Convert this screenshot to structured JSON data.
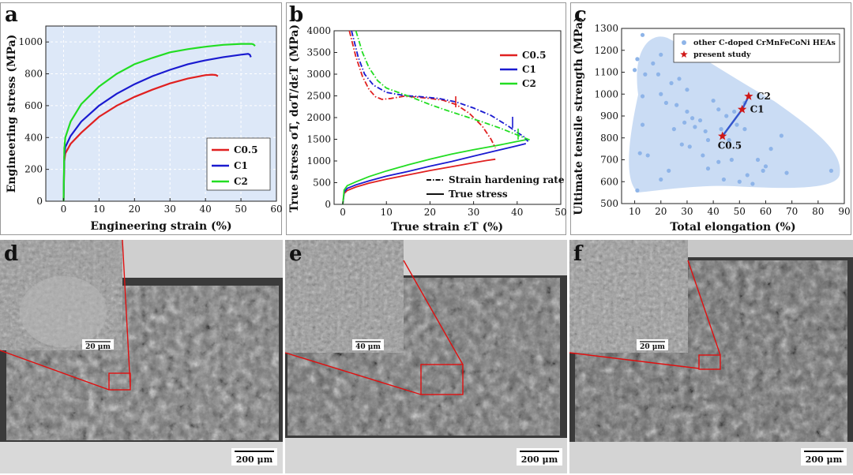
{
  "panels": {
    "a": {
      "letter": "a"
    },
    "b": {
      "letter": "b"
    },
    "c": {
      "letter": "c"
    },
    "d": {
      "letter": "d",
      "scale_main": "200 μm",
      "scale_inset": "20 μm"
    },
    "e": {
      "letter": "e",
      "scale_main": "200 μm",
      "scale_inset": "40 μm"
    },
    "f": {
      "letter": "f",
      "scale_main": "200 μm",
      "scale_inset": "20 μm"
    }
  },
  "colors": {
    "C0.5": "#e02020",
    "C1": "#1a1ad0",
    "C2": "#22dd22",
    "cloud": "#b8d0f0",
    "plot_bg": "#dde8f8",
    "star": "#d01818"
  },
  "chart_data": [
    {
      "id": "a",
      "type": "line",
      "xlabel": "Engineering strain (%)",
      "ylabel": "Engineering stress (MPa)",
      "xlim": [
        -5,
        60
      ],
      "ylim": [
        0,
        1100
      ],
      "xticks": [
        0,
        10,
        20,
        30,
        40,
        50,
        60
      ],
      "yticks": [
        0,
        200,
        400,
        600,
        800,
        1000
      ],
      "legend_position": "bottom-right",
      "series": [
        {
          "name": "C0.5",
          "points": [
            [
              0,
              0
            ],
            [
              0.2,
              250
            ],
            [
              0.5,
              300
            ],
            [
              2,
              360
            ],
            [
              5,
              430
            ],
            [
              10,
              530
            ],
            [
              15,
              600
            ],
            [
              20,
              655
            ],
            [
              25,
              700
            ],
            [
              30,
              740
            ],
            [
              35,
              770
            ],
            [
              40,
              792
            ],
            [
              42,
              795
            ],
            [
              43,
              792
            ],
            [
              43.5,
              785
            ]
          ]
        },
        {
          "name": "C1",
          "points": [
            [
              0,
              0
            ],
            [
              0.2,
              280
            ],
            [
              0.5,
              340
            ],
            [
              2,
              410
            ],
            [
              5,
              500
            ],
            [
              10,
              600
            ],
            [
              15,
              675
            ],
            [
              20,
              735
            ],
            [
              25,
              785
            ],
            [
              30,
              825
            ],
            [
              35,
              860
            ],
            [
              40,
              885
            ],
            [
              45,
              905
            ],
            [
              50,
              920
            ],
            [
              52,
              925
            ],
            [
              52.5,
              920
            ],
            [
              52.8,
              905
            ]
          ]
        },
        {
          "name": "C2",
          "points": [
            [
              0,
              0
            ],
            [
              0.2,
              330
            ],
            [
              0.5,
              400
            ],
            [
              2,
              500
            ],
            [
              5,
              610
            ],
            [
              10,
              720
            ],
            [
              15,
              800
            ],
            [
              20,
              860
            ],
            [
              25,
              900
            ],
            [
              30,
              935
            ],
            [
              35,
              955
            ],
            [
              40,
              970
            ],
            [
              45,
              982
            ],
            [
              50,
              988
            ],
            [
              53,
              988
            ],
            [
              53.5,
              985
            ],
            [
              54,
              975
            ]
          ]
        }
      ]
    },
    {
      "id": "b",
      "type": "line",
      "xlabel": "True strain εT (%)",
      "ylabel": "True stress σT, dσT/dεT (MPa)",
      "xlim": [
        -2,
        50
      ],
      "ylim": [
        0,
        4000
      ],
      "xticks": [
        0,
        10,
        20,
        30,
        40,
        50
      ],
      "yticks": [
        0,
        500,
        1000,
        1500,
        2000,
        2500,
        3000,
        3500,
        4000
      ],
      "legend_position": "top-right",
      "style_legend": [
        {
          "label": "Strain hardening rate",
          "dash": "dashdot"
        },
        {
          "label": "True stress",
          "dash": "solid"
        }
      ],
      "series": [
        {
          "name": "C0.5",
          "kind": "true-stress",
          "points": [
            [
              0,
              0
            ],
            [
              0.3,
              250
            ],
            [
              1,
              320
            ],
            [
              3,
              400
            ],
            [
              6,
              490
            ],
            [
              10,
              580
            ],
            [
              15,
              680
            ],
            [
              20,
              780
            ],
            [
              25,
              870
            ],
            [
              30,
              960
            ],
            [
              33,
              1010
            ],
            [
              35,
              1040
            ]
          ]
        },
        {
          "name": "C1",
          "kind": "true-stress",
          "points": [
            [
              0,
              0
            ],
            [
              0.3,
              280
            ],
            [
              1,
              370
            ],
            [
              3,
              450
            ],
            [
              6,
              540
            ],
            [
              10,
              650
            ],
            [
              15,
              760
            ],
            [
              20,
              880
            ],
            [
              25,
              990
            ],
            [
              30,
              1110
            ],
            [
              35,
              1230
            ],
            [
              40,
              1350
            ],
            [
              42,
              1400
            ]
          ]
        },
        {
          "name": "C2",
          "kind": "true-stress",
          "points": [
            [
              0,
              0
            ],
            [
              0.3,
              330
            ],
            [
              1,
              430
            ],
            [
              3,
              520
            ],
            [
              6,
              640
            ],
            [
              10,
              770
            ],
            [
              15,
              910
            ],
            [
              20,
              1040
            ],
            [
              25,
              1160
            ],
            [
              30,
              1260
            ],
            [
              35,
              1350
            ],
            [
              40,
              1450
            ],
            [
              42,
              1490
            ]
          ]
        },
        {
          "name": "C0.5",
          "kind": "hardening-rate",
          "points": [
            [
              1.5,
              4000
            ],
            [
              3,
              3400
            ],
            [
              4.5,
              2950
            ],
            [
              6,
              2650
            ],
            [
              7.5,
              2480
            ],
            [
              9,
              2420
            ],
            [
              11,
              2440
            ],
            [
              14,
              2490
            ],
            [
              17,
              2470
            ],
            [
              20,
              2440
            ],
            [
              23,
              2400
            ],
            [
              26,
              2300
            ],
            [
              29,
              2100
            ],
            [
              32,
              1800
            ],
            [
              34,
              1500
            ],
            [
              35,
              1300
            ]
          ]
        },
        {
          "name": "C1",
          "kind": "hardening-rate",
          "points": [
            [
              2,
              4000
            ],
            [
              3.5,
              3400
            ],
            [
              5,
              3000
            ],
            [
              7,
              2750
            ],
            [
              10,
              2580
            ],
            [
              14,
              2510
            ],
            [
              18,
              2480
            ],
            [
              22,
              2440
            ],
            [
              26,
              2360
            ],
            [
              30,
              2220
            ],
            [
              34,
              2050
            ],
            [
              38,
              1800
            ],
            [
              40,
              1660
            ],
            [
              41.5,
              1560
            ],
            [
              42.5,
              1450
            ]
          ]
        },
        {
          "name": "C2",
          "kind": "hardening-rate",
          "points": [
            [
              3,
              4000
            ],
            [
              4.5,
              3500
            ],
            [
              6,
              3150
            ],
            [
              8,
              2850
            ],
            [
              10,
              2680
            ],
            [
              13,
              2570
            ],
            [
              16,
              2460
            ],
            [
              20,
              2300
            ],
            [
              24,
              2160
            ],
            [
              28,
              2030
            ],
            [
              32,
              1900
            ],
            [
              36,
              1760
            ],
            [
              39,
              1640
            ],
            [
              42,
              1520
            ],
            [
              43,
              1480
            ]
          ]
        }
      ]
    },
    {
      "id": "c",
      "type": "scatter",
      "xlabel": "Total elongation (%)",
      "ylabel": "Ultimate tensile strength (MPa)",
      "xlim": [
        5,
        90
      ],
      "ylim": [
        500,
        1300
      ],
      "xticks": [
        10,
        20,
        30,
        40,
        50,
        60,
        70,
        80,
        90
      ],
      "yticks": [
        500,
        600,
        700,
        800,
        900,
        1000,
        1100,
        1200,
        1300
      ],
      "legend_position": "top-right",
      "series": [
        {
          "name": "other C-doped CrMnFeCoNi HEAs",
          "points": [
            [
              13,
              1270
            ],
            [
              11,
              1160
            ],
            [
              10,
              1110
            ],
            [
              14,
              1090
            ],
            [
              17,
              1140
            ],
            [
              20,
              1180
            ],
            [
              19,
              1090
            ],
            [
              24,
              1050
            ],
            [
              27,
              1070
            ],
            [
              30,
              1020
            ],
            [
              20,
              1000
            ],
            [
              13,
              990
            ],
            [
              22,
              960
            ],
            [
              26,
              950
            ],
            [
              30,
              920
            ],
            [
              32,
              890
            ],
            [
              35,
              880
            ],
            [
              29,
              870
            ],
            [
              33,
              850
            ],
            [
              37,
              830
            ],
            [
              38,
              790
            ],
            [
              43,
              840
            ],
            [
              46,
              790
            ],
            [
              49,
              860
            ],
            [
              52,
              840
            ],
            [
              25,
              840
            ],
            [
              28,
              770
            ],
            [
              31,
              760
            ],
            [
              13,
              860
            ],
            [
              12,
              730
            ],
            [
              15,
              720
            ],
            [
              20,
              610
            ],
            [
              23,
              650
            ],
            [
              11,
              560
            ],
            [
              38,
              660
            ],
            [
              42,
              690
            ],
            [
              47,
              700
            ],
            [
              50,
              600
            ],
            [
              53,
              630
            ],
            [
              55,
              590
            ],
            [
              59,
              650
            ],
            [
              62,
              750
            ],
            [
              68,
              640
            ],
            [
              66,
              810
            ],
            [
              85,
              650
            ],
            [
              42,
              930
            ],
            [
              45,
              900
            ],
            [
              40,
              970
            ],
            [
              48,
              920
            ],
            [
              52,
              960
            ],
            [
              57,
              700
            ],
            [
              60,
              670
            ],
            [
              36,
              720
            ],
            [
              44,
              610
            ]
          ]
        },
        {
          "name": "present study",
          "points": [
            [
              43.5,
              808
            ],
            [
              51,
              930
            ],
            [
              53.5,
              990
            ]
          ],
          "labels": [
            "C0.5",
            "C1",
            "C2"
          ]
        }
      ]
    }
  ]
}
